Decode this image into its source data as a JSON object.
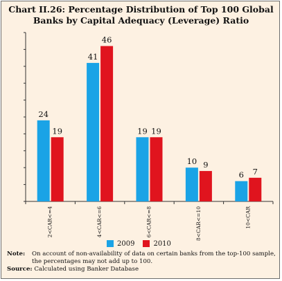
{
  "chart_data": {
    "type": "bar",
    "title": "Chart II.26: Percentage Distribution of Top 100 Global\nBanks by Capital Adequacy (Leverage) Ratio",
    "categories": [
      "2<CAR<=4",
      "4<CAR<=6",
      "6<CAR<=8",
      "8<CAR<=10",
      "10<CAR"
    ],
    "series": [
      {
        "name": "2009",
        "values": [
          24,
          41,
          19,
          10,
          6
        ]
      },
      {
        "name": "2010",
        "values": [
          19,
          46,
          19,
          9,
          7
        ]
      }
    ],
    "ylim": [
      0,
      50
    ],
    "grid": false,
    "legend": "bottom-center",
    "colors": {
      "2009": "#1aa3e6",
      "2010": "#e0141e"
    }
  },
  "note": {
    "label": "Note:",
    "text": "On account of non-availability of data on certain banks from the top-100 sample, the percentages may not add up to 100."
  },
  "source": {
    "label": "Source:",
    "text": "Calculated using Banker Database"
  }
}
